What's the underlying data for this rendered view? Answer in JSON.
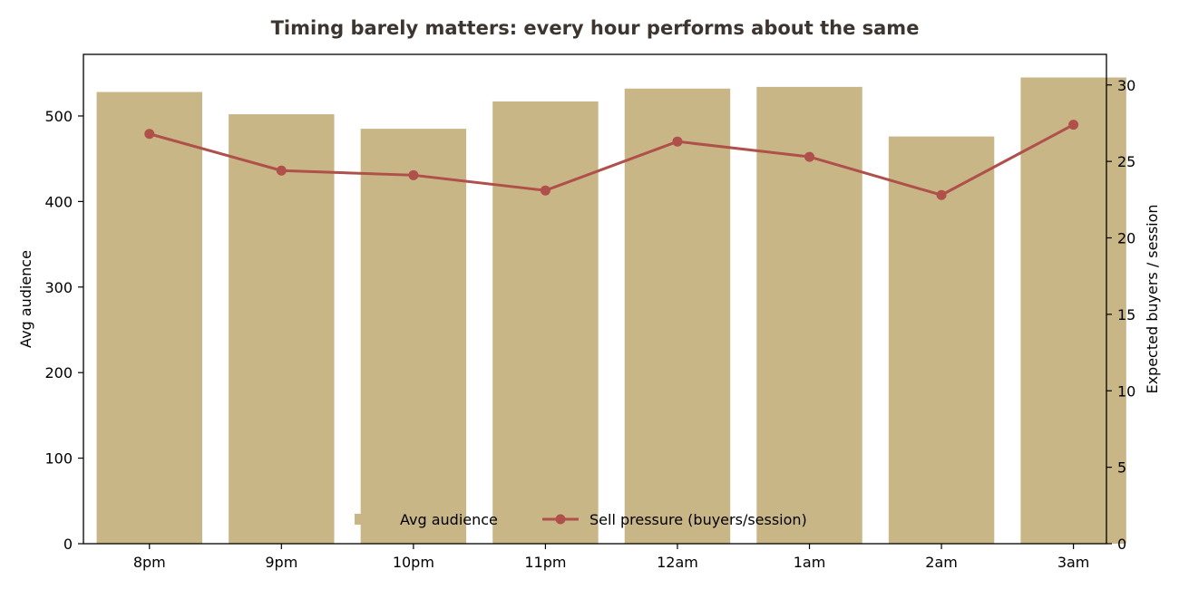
{
  "chart_data": {
    "type": "bar",
    "title": "Timing barely matters: every hour performs about the same",
    "categories": [
      "8pm",
      "9pm",
      "10pm",
      "11pm",
      "12am",
      "1am",
      "2am",
      "3am"
    ],
    "series": [
      {
        "name": "Avg audience",
        "type": "bar",
        "axis": "left",
        "color": "#c8b687",
        "values": [
          528,
          502,
          485,
          517,
          532,
          534,
          476,
          545
        ]
      },
      {
        "name": "Sell pressure (buyers/session)",
        "type": "line",
        "axis": "right",
        "color": "#b0504a",
        "values": [
          26.8,
          24.4,
          24.1,
          23.1,
          26.3,
          25.3,
          22.8,
          27.4
        ]
      }
    ],
    "y_left": {
      "label": "Avg audience",
      "ylim": [
        0,
        572
      ],
      "ticks": [
        0,
        100,
        200,
        300,
        400,
        500
      ]
    },
    "y_right": {
      "label": "Expected buyers / session",
      "ylim": [
        0,
        32
      ],
      "ticks": [
        0,
        5,
        10,
        15,
        20,
        25,
        30
      ]
    },
    "grid": false,
    "legend": {
      "placement": "bottom-center",
      "entries": [
        "Avg audience",
        "Sell pressure (buyers/session)"
      ]
    }
  }
}
